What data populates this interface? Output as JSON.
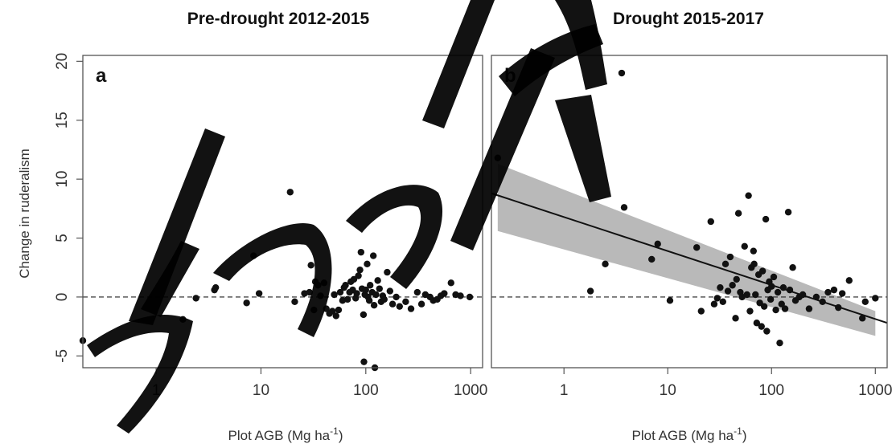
{
  "chart_data": [
    {
      "type": "scatter",
      "panel": "a",
      "title": "Pre-drought 2012-2015",
      "xlabel": "Plot AGB (Mg ha",
      "xlabel_sup": "-1",
      "xlabel_tail": ")",
      "ylabel": "Change in ruderalism",
      "xscale": "log",
      "xlim": [
        0.2,
        1300
      ],
      "ylim": [
        -6,
        20.5
      ],
      "xticks": [
        1,
        10,
        100,
        1000
      ],
      "xtick_labels": [
        "1",
        "10",
        "100",
        "1000"
      ],
      "yticks": [
        -5,
        0,
        5,
        10,
        15,
        20
      ],
      "ytick_labels": [
        "-5",
        "0",
        "5",
        "10",
        "15",
        "20"
      ],
      "reference_line_y": 0,
      "points": [
        [
          0.2,
          -3.7
        ],
        [
          1.8,
          -1.9
        ],
        [
          2.4,
          -0.1
        ],
        [
          3.7,
          0.8
        ],
        [
          3.6,
          0.6
        ],
        [
          7.3,
          -0.5
        ],
        [
          8.5,
          3.5
        ],
        [
          9.6,
          0.3
        ],
        [
          19,
          8.9
        ],
        [
          21,
          -0.4
        ],
        [
          26,
          0.3
        ],
        [
          29,
          0.4
        ],
        [
          30,
          2.7
        ],
        [
          32,
          -1.1
        ],
        [
          33,
          1.3
        ],
        [
          35,
          1.0
        ],
        [
          37,
          0.1
        ],
        [
          40,
          1.2
        ],
        [
          42,
          -1.0
        ],
        [
          45,
          -1.4
        ],
        [
          48,
          -1.2
        ],
        [
          50,
          0.2
        ],
        [
          52,
          -1.6
        ],
        [
          55,
          -1.1
        ],
        [
          57,
          0.4
        ],
        [
          60,
          -0.3
        ],
        [
          62,
          0.8
        ],
        [
          64,
          1.0
        ],
        [
          67,
          -0.2
        ],
        [
          70,
          0.4
        ],
        [
          72,
          1.3
        ],
        [
          75,
          0.6
        ],
        [
          77,
          1.5
        ],
        [
          80,
          -0.1
        ],
        [
          82,
          0.3
        ],
        [
          85,
          1.8
        ],
        [
          88,
          2.3
        ],
        [
          90,
          3.8
        ],
        [
          92,
          0.7
        ],
        [
          95,
          -1.5
        ],
        [
          96,
          -5.5
        ],
        [
          98,
          0.2
        ],
        [
          100,
          0.6
        ],
        [
          103,
          2.8
        ],
        [
          105,
          0.0
        ],
        [
          108,
          -0.3
        ],
        [
          110,
          1.0
        ],
        [
          115,
          0.4
        ],
        [
          118,
          3.5
        ],
        [
          120,
          -0.7
        ],
        [
          122,
          -6.0
        ],
        [
          125,
          0.2
        ],
        [
          130,
          1.4
        ],
        [
          135,
          0.7
        ],
        [
          140,
          -0.4
        ],
        [
          145,
          0.1
        ],
        [
          150,
          -0.2
        ],
        [
          160,
          2.1
        ],
        [
          170,
          0.5
        ],
        [
          180,
          -0.6
        ],
        [
          195,
          0.0
        ],
        [
          210,
          -0.8
        ],
        [
          240,
          -0.4
        ],
        [
          270,
          -1.0
        ],
        [
          310,
          0.4
        ],
        [
          340,
          -0.6
        ],
        [
          370,
          0.2
        ],
        [
          410,
          0.0
        ],
        [
          440,
          -0.3
        ],
        [
          480,
          -0.2
        ],
        [
          520,
          0.1
        ],
        [
          560,
          0.3
        ],
        [
          650,
          1.2
        ],
        [
          720,
          0.2
        ],
        [
          800,
          0.1
        ],
        [
          980,
          0.0
        ]
      ]
    },
    {
      "type": "scatter",
      "panel": "b",
      "title": "Drought 2015-2017",
      "xlabel": "Plot AGB (Mg ha",
      "xlabel_sup": "-1",
      "xlabel_tail": ")",
      "ylabel": "",
      "xscale": "log",
      "xlim": [
        0.2,
        1300
      ],
      "ylim": [
        -6,
        20.5
      ],
      "xticks": [
        1,
        10,
        100,
        1000
      ],
      "xtick_labels": [
        "1",
        "10",
        "100",
        "1000"
      ],
      "reference_line_y": 0,
      "fit_line": {
        "x": [
          0.2,
          1300
        ],
        "y": [
          8.8,
          -2.2
        ]
      },
      "confidence_band": {
        "x": [
          0.23,
          1000
        ],
        "upper": [
          11.3,
          -1.2
        ],
        "lower": [
          5.6,
          -3.3
        ]
      },
      "points": [
        [
          0.23,
          11.8
        ],
        [
          1.8,
          0.5
        ],
        [
          2.5,
          2.8
        ],
        [
          3.6,
          19.0
        ],
        [
          3.8,
          7.6
        ],
        [
          7.0,
          3.2
        ],
        [
          8.0,
          4.5
        ],
        [
          10.5,
          -0.3
        ],
        [
          19,
          4.2
        ],
        [
          21,
          -1.2
        ],
        [
          26,
          6.4
        ],
        [
          28,
          -0.6
        ],
        [
          30,
          -0.1
        ],
        [
          32,
          0.8
        ],
        [
          34,
          -0.4
        ],
        [
          36,
          2.8
        ],
        [
          38,
          0.5
        ],
        [
          40,
          3.4
        ],
        [
          42,
          1.0
        ],
        [
          45,
          -1.8
        ],
        [
          46,
          1.5
        ],
        [
          48,
          7.1
        ],
        [
          50,
          0.4
        ],
        [
          52,
          0.0
        ],
        [
          55,
          4.3
        ],
        [
          58,
          0.2
        ],
        [
          60,
          8.6
        ],
        [
          62,
          -1.2
        ],
        [
          64,
          2.5
        ],
        [
          67,
          3.9
        ],
        [
          68,
          2.8
        ],
        [
          70,
          0.2
        ],
        [
          72,
          -2.2
        ],
        [
          75,
          1.9
        ],
        [
          77,
          -0.5
        ],
        [
          80,
          -2.5
        ],
        [
          82,
          2.2
        ],
        [
          85,
          -0.8
        ],
        [
          88,
          6.6
        ],
        [
          90,
          -2.9
        ],
        [
          92,
          0.6
        ],
        [
          95,
          1.3
        ],
        [
          98,
          -0.2
        ],
        [
          100,
          0.9
        ],
        [
          105,
          1.7
        ],
        [
          110,
          -1.1
        ],
        [
          115,
          0.4
        ],
        [
          120,
          -3.9
        ],
        [
          125,
          -0.6
        ],
        [
          130,
          0.8
        ],
        [
          135,
          -1.0
        ],
        [
          145,
          7.2
        ],
        [
          150,
          0.6
        ],
        [
          160,
          2.5
        ],
        [
          170,
          -0.3
        ],
        [
          185,
          0.0
        ],
        [
          200,
          0.2
        ],
        [
          230,
          -1.0
        ],
        [
          270,
          0.0
        ],
        [
          310,
          -0.4
        ],
        [
          350,
          0.4
        ],
        [
          400,
          0.6
        ],
        [
          440,
          -0.9
        ],
        [
          480,
          0.3
        ],
        [
          560,
          1.4
        ],
        [
          750,
          -1.8
        ],
        [
          800,
          -0.4
        ],
        [
          1000,
          -0.1
        ]
      ]
    }
  ]
}
